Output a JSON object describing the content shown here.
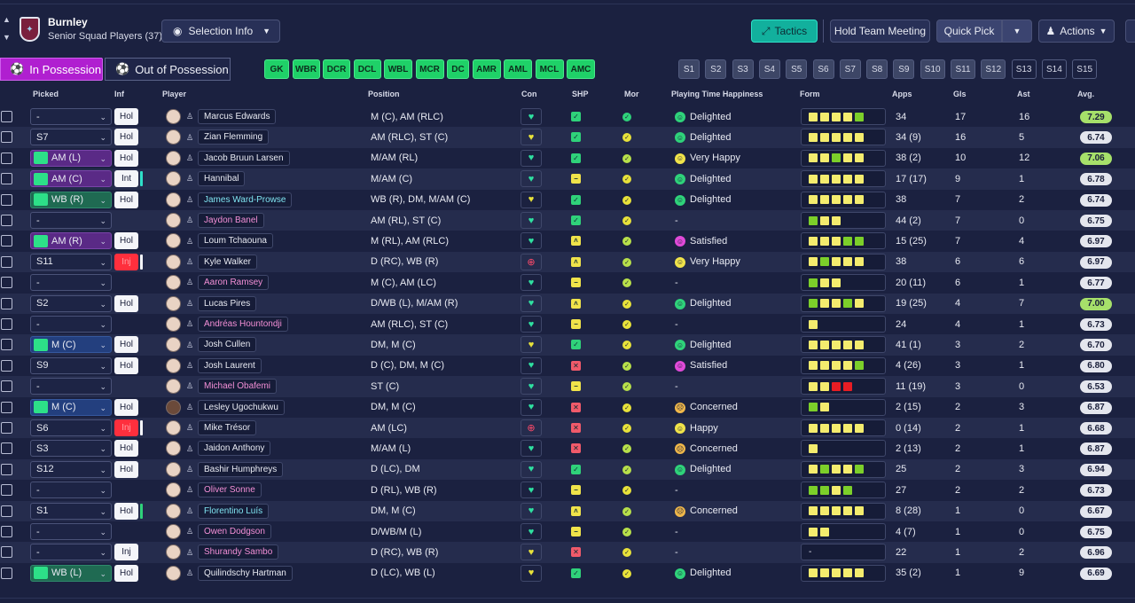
{
  "header": {
    "club_name": "Burnley",
    "squad_label": "Senior Squad Players (37)",
    "selection_info": "Selection Info",
    "tactics": "Tactics",
    "team_meeting": "Hold Team Meeting",
    "quick_pick": "Quick Pick",
    "actions": "Actions"
  },
  "possession": {
    "in": "In Possession",
    "out": "Out of Possession"
  },
  "position_chips": [
    "GK",
    "WBR",
    "DCR",
    "DCL",
    "WBL",
    "MCR",
    "DC",
    "AMR",
    "AML",
    "MCL",
    "AMC"
  ],
  "set_chips": [
    "S1",
    "S2",
    "S3",
    "S4",
    "S5",
    "S6",
    "S7",
    "S8",
    "S9",
    "S10",
    "S11",
    "S12",
    "S13",
    "S14",
    "S15"
  ],
  "columns": {
    "picked": "Picked",
    "inf": "Inf",
    "player": "Player",
    "position": "Position",
    "con": "Con",
    "shp": "SHP",
    "mor": "Mor",
    "pth": "Playing Time Happiness",
    "form": "Form",
    "apps": "Apps",
    "gls": "Gls",
    "ast": "Ast",
    "avg": "Avg."
  },
  "colors": {
    "form_yellow": "#f4ec6e",
    "form_green": "#7ccf2a",
    "form_red": "#e81d24",
    "con_green": "#2fe0a0",
    "con_yellow": "#e8e23a",
    "con_red": "#ff4a6a",
    "shp_green": "#2fd27a",
    "shp_yellow": "#f0e34a",
    "shp_red": "#f05a6a",
    "mor_yellow": "#e8e23a",
    "mor_lime": "#b8e04a",
    "mor_green": "#2fd27a",
    "pth_green": "#2fd27a",
    "pth_yellow": "#f0e34a",
    "pth_pink": "#e04ad8",
    "pth_orange": "#f0b84a"
  },
  "players": [
    {
      "picked": "-",
      "sel_style": "",
      "inf": "Hol",
      "inf_style": "white",
      "bar": "",
      "name": "Marcus Edwards",
      "name_style": "",
      "position": "M (C), AM (RLC)",
      "con": "green",
      "shp": "check",
      "mor": "green",
      "pth": "Delighted",
      "pth_color": "green",
      "form": [
        "y",
        "y",
        "y",
        "y",
        "g"
      ],
      "apps": "34",
      "gls": "17",
      "ast": "16",
      "avg": "7.29",
      "avg_hi": true
    },
    {
      "picked": "S7",
      "sel_style": "",
      "inf": "Hol",
      "inf_style": "white",
      "bar": "",
      "name": "Zian Flemming",
      "name_style": "",
      "position": "AM (RLC), ST (C)",
      "con": "yellow",
      "shp": "check",
      "mor": "yellow",
      "pth": "Delighted",
      "pth_color": "green",
      "form": [
        "y",
        "y",
        "y",
        "y",
        "y"
      ],
      "apps": "34 (9)",
      "gls": "16",
      "ast": "5",
      "avg": "6.74",
      "avg_hi": false
    },
    {
      "picked": "AM (L)",
      "sel_style": "purple",
      "inf": "Hol",
      "inf_style": "white",
      "bar": "",
      "name": "Jacob Bruun Larsen",
      "name_style": "",
      "position": "M/AM (RL)",
      "con": "green",
      "shp": "check",
      "mor": "lime",
      "pth": "Very Happy",
      "pth_color": "yellow",
      "form": [
        "y",
        "y",
        "g",
        "y",
        "y"
      ],
      "apps": "38 (2)",
      "gls": "10",
      "ast": "12",
      "avg": "7.06",
      "avg_hi": true
    },
    {
      "picked": "AM (C)",
      "sel_style": "purple",
      "inf": "Int",
      "inf_style": "white",
      "bar": "#2fe0c8",
      "name": "Hannibal",
      "name_style": "",
      "position": "M/AM (C)",
      "con": "green",
      "shp": "minus",
      "mor": "yellow",
      "pth": "Delighted",
      "pth_color": "green",
      "form": [
        "y",
        "y",
        "y",
        "y",
        "y"
      ],
      "apps": "17 (17)",
      "gls": "9",
      "ast": "1",
      "avg": "6.78",
      "avg_hi": false
    },
    {
      "picked": "WB (R)",
      "sel_style": "green",
      "inf": "Hol",
      "inf_style": "white",
      "bar": "",
      "name": "James Ward-Prowse",
      "name_style": "cyan",
      "position": "WB (R), DM, M/AM (C)",
      "con": "yellow",
      "shp": "check",
      "mor": "yellow",
      "pth": "Delighted",
      "pth_color": "green",
      "form": [
        "y",
        "y",
        "y",
        "y",
        "y"
      ],
      "apps": "38",
      "gls": "7",
      "ast": "2",
      "avg": "6.74",
      "avg_hi": false
    },
    {
      "picked": "-",
      "sel_style": "",
      "inf": "",
      "inf_style": "none",
      "bar": "",
      "name": "Jaydon Banel",
      "name_style": "pink",
      "position": "AM (RL), ST (C)",
      "con": "green",
      "shp": "check",
      "mor": "yellow",
      "pth": "-",
      "pth_color": "none",
      "form": [
        "g",
        "y",
        "y"
      ],
      "apps": "44 (2)",
      "gls": "7",
      "ast": "0",
      "avg": "6.75",
      "avg_hi": false
    },
    {
      "picked": "AM (R)",
      "sel_style": "purple",
      "inf": "Hol",
      "inf_style": "white",
      "bar": "",
      "name": "Loum Tchaouna",
      "name_style": "",
      "position": "M (RL), AM (RLC)",
      "con": "green",
      "shp": "up2",
      "mor": "lime",
      "pth": "Satisfied",
      "pth_color": "pink",
      "form": [
        "y",
        "y",
        "y",
        "g",
        "g"
      ],
      "apps": "15 (25)",
      "gls": "7",
      "ast": "4",
      "avg": "6.97",
      "avg_hi": false
    },
    {
      "picked": "S11",
      "sel_style": "",
      "inf": "Inj",
      "inf_style": "red",
      "bar": "#f4f5f9",
      "name": "Kyle Walker",
      "name_style": "",
      "position": "D (RC), WB (R)",
      "con": "red",
      "shp": "up2",
      "mor": "lime",
      "pth": "Very Happy",
      "pth_color": "yellow",
      "form": [
        "y",
        "g",
        "y",
        "y",
        "y"
      ],
      "apps": "38",
      "gls": "6",
      "ast": "6",
      "avg": "6.97",
      "avg_hi": false
    },
    {
      "picked": "-",
      "sel_style": "",
      "inf": "",
      "inf_style": "none",
      "bar": "",
      "name": "Aaron Ramsey",
      "name_style": "pink",
      "position": "M (C), AM (LC)",
      "con": "green",
      "shp": "minus",
      "mor": "lime",
      "pth": "-",
      "pth_color": "none",
      "form": [
        "g",
        "y",
        "y"
      ],
      "apps": "20 (11)",
      "gls": "6",
      "ast": "1",
      "avg": "6.77",
      "avg_hi": false
    },
    {
      "picked": "S2",
      "sel_style": "",
      "inf": "Hol",
      "inf_style": "white",
      "bar": "",
      "name": "Lucas Pires",
      "name_style": "",
      "position": "D/WB (L), M/AM (R)",
      "con": "green",
      "shp": "up2",
      "mor": "yellow",
      "pth": "Delighted",
      "pth_color": "green",
      "form": [
        "g",
        "y",
        "y",
        "g",
        "y"
      ],
      "apps": "19 (25)",
      "gls": "4",
      "ast": "7",
      "avg": "7.00",
      "avg_hi": true
    },
    {
      "picked": "-",
      "sel_style": "",
      "inf": "",
      "inf_style": "none",
      "bar": "",
      "name": "Andréas Hountondji",
      "name_style": "pink",
      "position": "AM (RLC), ST (C)",
      "con": "green",
      "shp": "minus",
      "mor": "yellow",
      "pth": "-",
      "pth_color": "none",
      "form": [
        "y"
      ],
      "apps": "24",
      "gls": "4",
      "ast": "1",
      "avg": "6.73",
      "avg_hi": false
    },
    {
      "picked": "M (C)",
      "sel_style": "blue",
      "inf": "Hol",
      "inf_style": "white",
      "bar": "",
      "name": "Josh Cullen",
      "name_style": "",
      "position": "DM, M (C)",
      "con": "yellow",
      "shp": "check",
      "mor": "yellow",
      "pth": "Delighted",
      "pth_color": "green",
      "form": [
        "y",
        "y",
        "y",
        "y",
        "y"
      ],
      "apps": "41 (1)",
      "gls": "3",
      "ast": "2",
      "avg": "6.70",
      "avg_hi": false
    },
    {
      "picked": "S9",
      "sel_style": "",
      "inf": "Hol",
      "inf_style": "white",
      "bar": "",
      "name": "Josh Laurent",
      "name_style": "",
      "position": "D (C), DM, M (C)",
      "con": "green",
      "shp": "cross",
      "mor": "lime",
      "pth": "Satisfied",
      "pth_color": "pink",
      "form": [
        "y",
        "y",
        "y",
        "y",
        "g"
      ],
      "apps": "4 (26)",
      "gls": "3",
      "ast": "1",
      "avg": "6.80",
      "avg_hi": false
    },
    {
      "picked": "-",
      "sel_style": "",
      "inf": "",
      "inf_style": "none",
      "bar": "",
      "name": "Michael Obafemi",
      "name_style": "pink",
      "position": "ST (C)",
      "con": "green",
      "shp": "minus",
      "mor": "lime",
      "pth": "-",
      "pth_color": "none",
      "form": [
        "y",
        "y",
        "r",
        "r"
      ],
      "apps": "11 (19)",
      "gls": "3",
      "ast": "0",
      "avg": "6.53",
      "avg_hi": false
    },
    {
      "picked": "M (C)",
      "sel_style": "blue",
      "inf": "Hol",
      "inf_style": "white",
      "bar": "",
      "name": "Lesley Ugochukwu",
      "name_style": "",
      "position": "DM, M (C)",
      "con": "green",
      "shp": "cross",
      "mor": "yellow",
      "pth": "Concerned",
      "pth_color": "orange",
      "form": [
        "g",
        "y"
      ],
      "apps": "2 (15)",
      "gls": "2",
      "ast": "3",
      "avg": "6.87",
      "avg_hi": false
    },
    {
      "picked": "S6",
      "sel_style": "",
      "inf": "Inj",
      "inf_style": "red",
      "bar": "#f4f5f9",
      "name": "Mike Trésor",
      "name_style": "",
      "position": "AM (LC)",
      "con": "red",
      "shp": "cross",
      "mor": "yellow",
      "pth": "Happy",
      "pth_color": "yellow",
      "form": [
        "y",
        "y",
        "y",
        "y",
        "y"
      ],
      "apps": "0 (14)",
      "gls": "2",
      "ast": "1",
      "avg": "6.68",
      "avg_hi": false
    },
    {
      "picked": "S3",
      "sel_style": "",
      "inf": "Hol",
      "inf_style": "white",
      "bar": "",
      "name": "Jaidon Anthony",
      "name_style": "",
      "position": "M/AM (L)",
      "con": "green",
      "shp": "cross",
      "mor": "lime",
      "pth": "Concerned",
      "pth_color": "orange",
      "form": [
        "y"
      ],
      "apps": "2 (13)",
      "gls": "2",
      "ast": "1",
      "avg": "6.87",
      "avg_hi": false
    },
    {
      "picked": "S12",
      "sel_style": "",
      "inf": "Hol",
      "inf_style": "white",
      "bar": "",
      "name": "Bashir Humphreys",
      "name_style": "",
      "position": "D (LC), DM",
      "con": "green",
      "shp": "check",
      "mor": "lime",
      "pth": "Delighted",
      "pth_color": "green",
      "form": [
        "y",
        "g",
        "y",
        "y",
        "g"
      ],
      "apps": "25",
      "gls": "2",
      "ast": "3",
      "avg": "6.94",
      "avg_hi": false
    },
    {
      "picked": "-",
      "sel_style": "",
      "inf": "",
      "inf_style": "none",
      "bar": "",
      "name": "Oliver Sonne",
      "name_style": "pink",
      "position": "D (RL), WB (R)",
      "con": "green",
      "shp": "minus",
      "mor": "yellow",
      "pth": "-",
      "pth_color": "none",
      "form": [
        "g",
        "g",
        "y",
        "g"
      ],
      "apps": "27",
      "gls": "2",
      "ast": "2",
      "avg": "6.73",
      "avg_hi": false
    },
    {
      "picked": "S1",
      "sel_style": "",
      "inf": "Hol",
      "inf_style": "white",
      "bar": "#2fd27a",
      "name": "Florentino Luís",
      "name_style": "cyan",
      "position": "DM, M (C)",
      "con": "green",
      "shp": "up",
      "mor": "lime",
      "pth": "Concerned",
      "pth_color": "orange",
      "form": [
        "y",
        "y",
        "y",
        "y",
        "y"
      ],
      "apps": "8 (28)",
      "gls": "1",
      "ast": "0",
      "avg": "6.67",
      "avg_hi": false
    },
    {
      "picked": "-",
      "sel_style": "",
      "inf": "",
      "inf_style": "none",
      "bar": "",
      "name": "Owen Dodgson",
      "name_style": "pink",
      "position": "D/WB/M (L)",
      "con": "green",
      "shp": "minus",
      "mor": "lime",
      "pth": "-",
      "pth_color": "none",
      "form": [
        "y",
        "y"
      ],
      "apps": "4 (7)",
      "gls": "1",
      "ast": "0",
      "avg": "6.75",
      "avg_hi": false
    },
    {
      "picked": "-",
      "sel_style": "",
      "inf": "Inj",
      "inf_style": "white",
      "bar": "",
      "name": "Shurandy Sambo",
      "name_style": "pink",
      "position": "D (RC), WB (R)",
      "con": "yellow",
      "shp": "cross",
      "mor": "yellow",
      "pth": "-",
      "pth_color": "none",
      "form": [],
      "form_dash": "-",
      "apps": "22",
      "gls": "1",
      "ast": "2",
      "avg": "6.96",
      "avg_hi": false
    },
    {
      "picked": "WB (L)",
      "sel_style": "green",
      "inf": "Hol",
      "inf_style": "white",
      "bar": "",
      "name": "Quilindschy Hartman",
      "name_style": "",
      "position": "D (LC), WB (L)",
      "con": "yellow",
      "shp": "check",
      "mor": "yellow",
      "pth": "Delighted",
      "pth_color": "green",
      "form": [
        "y",
        "y",
        "y",
        "y",
        "y"
      ],
      "apps": "35 (2)",
      "gls": "1",
      "ast": "9",
      "avg": "6.69",
      "avg_hi": false
    }
  ]
}
